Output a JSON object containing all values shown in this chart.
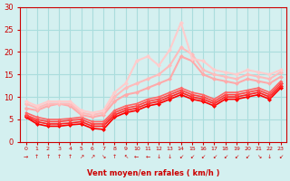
{
  "xlabel": "Vent moyen/en rafales ( km/h )",
  "ylabel": "",
  "background_color": "#d4f0f0",
  "grid_color": "#aadddd",
  "x_range": [
    0,
    23
  ],
  "y_range": [
    0,
    30
  ],
  "yticks": [
    0,
    5,
    10,
    15,
    20,
    25,
    30
  ],
  "xticks": [
    0,
    1,
    2,
    3,
    4,
    5,
    6,
    7,
    8,
    9,
    10,
    11,
    12,
    13,
    14,
    15,
    16,
    17,
    18,
    19,
    20,
    21,
    22,
    23
  ],
  "lines": [
    {
      "x": [
        0,
        1,
        2,
        3,
        4,
        5,
        6,
        7,
        8,
        9,
        10,
        11,
        12,
        13,
        14,
        15,
        16,
        17,
        18,
        19,
        20,
        21,
        22,
        23
      ],
      "y": [
        5.5,
        4.0,
        3.5,
        3.5,
        3.8,
        4.0,
        3.0,
        2.8,
        5.5,
        6.5,
        7.0,
        8.0,
        8.5,
        9.5,
        10.5,
        9.5,
        9.0,
        8.0,
        9.5,
        9.5,
        10.0,
        10.5,
        9.5,
        12.0
      ],
      "color": "#ff0000",
      "lw": 1.2,
      "marker": "D",
      "ms": 2.5
    },
    {
      "x": [
        0,
        1,
        2,
        3,
        4,
        5,
        6,
        7,
        8,
        9,
        10,
        11,
        12,
        13,
        14,
        15,
        16,
        17,
        18,
        19,
        20,
        21,
        22,
        23
      ],
      "y": [
        5.8,
        4.5,
        4.0,
        4.0,
        4.2,
        4.5,
        3.5,
        3.5,
        6.0,
        7.0,
        7.5,
        8.5,
        9.0,
        10.0,
        11.0,
        10.0,
        9.5,
        8.5,
        10.0,
        10.0,
        10.5,
        11.0,
        10.0,
        12.5
      ],
      "color": "#ff2222",
      "lw": 1.2,
      "marker": "D",
      "ms": 2.5
    },
    {
      "x": [
        0,
        1,
        2,
        3,
        4,
        5,
        6,
        7,
        8,
        9,
        10,
        11,
        12,
        13,
        14,
        15,
        16,
        17,
        18,
        19,
        20,
        21,
        22,
        23
      ],
      "y": [
        6.0,
        5.0,
        4.5,
        4.5,
        4.8,
        5.0,
        4.0,
        4.0,
        6.5,
        7.5,
        8.0,
        9.0,
        9.5,
        10.5,
        11.5,
        10.5,
        10.0,
        9.0,
        10.5,
        10.5,
        11.0,
        11.5,
        10.5,
        13.0
      ],
      "color": "#ff4444",
      "lw": 1.2,
      "marker": "D",
      "ms": 2.5
    },
    {
      "x": [
        0,
        1,
        2,
        3,
        4,
        5,
        6,
        7,
        8,
        9,
        10,
        11,
        12,
        13,
        14,
        15,
        16,
        17,
        18,
        19,
        20,
        21,
        22,
        23
      ],
      "y": [
        6.5,
        5.5,
        5.0,
        5.0,
        5.2,
        5.5,
        4.5,
        4.5,
        7.0,
        8.0,
        8.5,
        9.5,
        10.0,
        11.0,
        12.0,
        11.0,
        10.5,
        9.5,
        11.0,
        11.0,
        11.5,
        12.0,
        11.0,
        13.5
      ],
      "color": "#ff6666",
      "lw": 1.2,
      "marker": "D",
      "ms": 2.0
    },
    {
      "x": [
        0,
        1,
        2,
        3,
        4,
        5,
        6,
        7,
        8,
        9,
        10,
        11,
        12,
        13,
        14,
        15,
        16,
        17,
        18,
        19,
        20,
        21,
        22,
        23
      ],
      "y": [
        7.5,
        7.0,
        8.0,
        8.5,
        8.0,
        6.0,
        5.5,
        6.0,
        9.0,
        10.5,
        11.0,
        12.0,
        13.0,
        14.0,
        19.0,
        18.0,
        15.0,
        14.0,
        13.5,
        13.0,
        14.0,
        13.5,
        13.0,
        14.5
      ],
      "color": "#ffaaaa",
      "lw": 1.5,
      "marker": "D",
      "ms": 2.5
    },
    {
      "x": [
        0,
        1,
        2,
        3,
        4,
        5,
        6,
        7,
        8,
        9,
        10,
        11,
        12,
        13,
        14,
        15,
        16,
        17,
        18,
        19,
        20,
        21,
        22,
        23
      ],
      "y": [
        8.5,
        7.5,
        8.5,
        8.5,
        8.5,
        6.5,
        6.0,
        6.5,
        10.0,
        12.0,
        13.0,
        14.0,
        15.0,
        17.0,
        21.0,
        19.5,
        16.0,
        15.0,
        14.5,
        14.0,
        15.0,
        14.5,
        14.0,
        15.5
      ],
      "color": "#ffbbbb",
      "lw": 1.5,
      "marker": "D",
      "ms": 2.5
    },
    {
      "x": [
        0,
        1,
        2,
        3,
        4,
        5,
        6,
        7,
        8,
        9,
        10,
        11,
        12,
        13,
        14,
        15,
        16,
        17,
        18,
        19,
        20,
        21,
        22,
        23
      ],
      "y": [
        9.0,
        8.0,
        9.0,
        9.0,
        9.0,
        7.0,
        6.5,
        7.0,
        11.0,
        13.0,
        18.0,
        19.0,
        17.0,
        20.5,
        26.5,
        18.5,
        18.0,
        16.0,
        15.5,
        15.0,
        16.0,
        15.5,
        15.0,
        16.0
      ],
      "color": "#ffcccc",
      "lw": 1.5,
      "marker": "D",
      "ms": 2.5
    }
  ],
  "wind_arrows": [
    "→",
    "↑",
    "↑",
    "↑",
    "↑",
    "↗",
    "↗",
    "↘",
    "↑",
    "↖",
    "←",
    "←",
    "↓",
    "↓",
    "↙",
    "↙",
    "↙",
    "↙",
    "↙",
    "↙",
    "↙",
    "↘",
    "↓",
    "↙"
  ],
  "text_color": "#cc0000",
  "axis_color": "#cc0000",
  "tick_color": "#cc0000"
}
